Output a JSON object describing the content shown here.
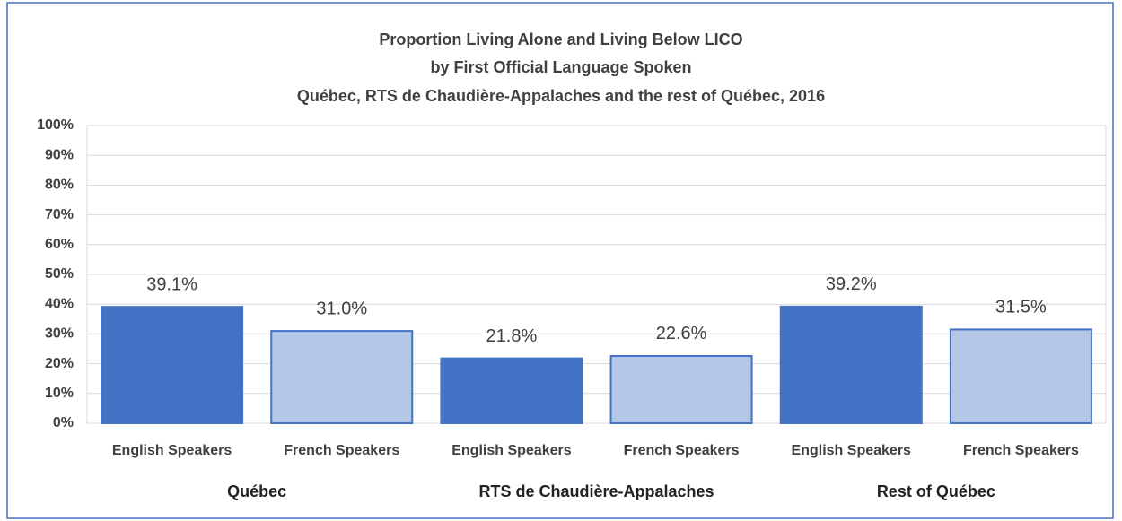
{
  "chart_data": {
    "type": "bar",
    "title": [
      "Proportion Living Alone and Living Below LICO",
      "by First Official Language Spoken",
      "Québec, RTS de Chaudière-Appalaches and the rest of Québec, 2016"
    ],
    "categories": [
      "English Speakers",
      "French Speakers",
      "English Speakers",
      "French Speakers",
      "English Speakers",
      "French Speakers"
    ],
    "groups": [
      "Québec",
      "RTS de Chaudière-Appalaches",
      "Rest of Québec"
    ],
    "values": [
      39.1,
      31.0,
      21.8,
      22.6,
      39.2,
      31.5
    ],
    "value_labels": [
      "39.1%",
      "31.0%",
      "21.8%",
      "22.6%",
      "39.2%",
      "31.5%"
    ],
    "colors": [
      "#4472c4",
      "#b4c7e7",
      "#4472c4",
      "#b4c7e7",
      "#4472c4",
      "#b4c7e7"
    ],
    "edge_color": "#4472c4",
    "ylim": [
      0,
      100
    ],
    "yticks": [
      {
        "value": 0,
        "label": "0%"
      },
      {
        "value": 10,
        "label": "10%"
      },
      {
        "value": 20,
        "label": "20%"
      },
      {
        "value": 30,
        "label": "30%"
      },
      {
        "value": 40,
        "label": "40%"
      },
      {
        "value": 50,
        "label": "50%"
      },
      {
        "value": 60,
        "label": "60%"
      },
      {
        "value": 70,
        "label": "70%"
      },
      {
        "value": 80,
        "label": "80%"
      },
      {
        "value": 90,
        "label": "90%"
      },
      {
        "value": 100,
        "label": "100%"
      }
    ],
    "grid": true
  }
}
